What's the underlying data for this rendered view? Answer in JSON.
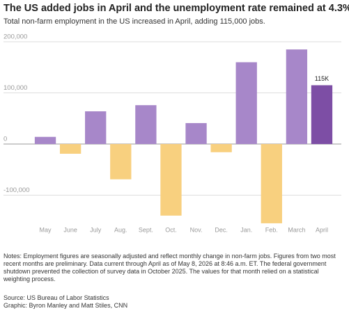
{
  "chart_data": {
    "type": "bar",
    "title": "The US added jobs in April and the unemployment rate remained at 4.3%.",
    "subtitle": "Total non-farm employment in the US increased in April, adding 115,000 jobs.",
    "categories": [
      "May",
      "June",
      "July",
      "Aug.",
      "Sept.",
      "Oct.",
      "Nov.",
      "Dec.",
      "Jan.",
      "Feb.",
      "March",
      "April"
    ],
    "values": [
      14000,
      -19000,
      64000,
      -69000,
      76000,
      -140000,
      41000,
      -16000,
      160000,
      -155000,
      185000,
      115000
    ],
    "value_labels": [
      null,
      null,
      null,
      null,
      null,
      null,
      null,
      null,
      null,
      null,
      null,
      "115K"
    ],
    "colors": [
      "#a787c9",
      "#f8d07f",
      "#a787c9",
      "#f8d07f",
      "#a787c9",
      "#f8d07f",
      "#a787c9",
      "#f8d07f",
      "#a787c9",
      "#f8d07f",
      "#a787c9",
      "#7d4ea5"
    ],
    "ylim": [
      -160000,
      210000
    ],
    "yticks": [
      {
        "value": -100000,
        "label": "-100,000"
      },
      0,
      {
        "value": 100000,
        "label": "100,000"
      },
      {
        "value": 200000,
        "label": "200,000"
      }
    ],
    "grid": true,
    "notes": "Notes: Employment figures are seasonally adjusted and reflect monthly change in non-farm jobs. Figures from two most recent months are preliminary. Data current through April as of May 8, 2026 at 8:46 a.m. ET. The federal government shutdown prevented the collection of survey data in October 2025. The values for that month relied on a statistical weighting process.",
    "source": "Source: US Bureau of Labor Statistics",
    "credit": "Graphic: Byron Manley and Matt Stiles, CNN"
  }
}
